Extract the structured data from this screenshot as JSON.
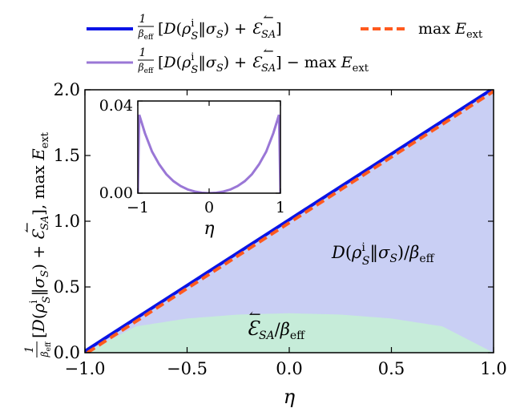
{
  "chart_data": {
    "type": "area",
    "xlabel": "η",
    "ylabel": "(1/β_eff)[D(ρ_S^i‖σ_S) + ↼E_SA], max E_ext",
    "xlim": [
      -1.0,
      1.0
    ],
    "ylim": [
      0.0,
      2.0
    ],
    "x_ticks": [
      "−1.0",
      "−0.5",
      "0.0",
      "0.5",
      "1.0"
    ],
    "y_ticks": [
      "0.0",
      "0.5",
      "1.0",
      "1.5",
      "2.0"
    ],
    "legend_placement": "top",
    "colors": {
      "total_line": "#0a14e6",
      "max_eext_line": "#ff5a1e",
      "difference_line": "#9a77d6",
      "relative_entropy_fill": "#c9cff4",
      "ergotropy_fill": "#c6ecd9"
    },
    "series": [
      {
        "name": "(1/β_eff)[D(ρ_S^i‖σ_S) + ↼E_SA]",
        "style": "solid",
        "color_key": "total_line",
        "x": [
          -1.0,
          -0.5,
          0.0,
          0.5,
          1.0
        ],
        "values": [
          0.0,
          0.5,
          1.0,
          1.5,
          2.0
        ]
      },
      {
        "name": "max E_ext",
        "style": "dashed",
        "color_key": "max_eext_line",
        "x": [
          -1.0,
          -0.5,
          0.0,
          0.5,
          1.0
        ],
        "values": [
          0.0,
          0.5,
          1.0,
          1.5,
          2.0
        ]
      },
      {
        "name": "(1/β_eff)[D(ρ_S^i‖σ_S) + ↼E_SA] − max E_ext",
        "style": "solid",
        "color_key": "difference_line",
        "plotted_in": "inset"
      }
    ],
    "areas": [
      {
        "label": "D(ρ_S^i‖σ_S)/β_eff",
        "color_key": "relative_entropy_fill",
        "x": [
          -1.0,
          -0.5,
          0.0,
          0.5,
          1.0
        ],
        "upper": [
          0.0,
          0.5,
          1.0,
          1.5,
          2.0
        ]
      },
      {
        "label": "↼E_SA/β_eff",
        "color_key": "ergotropy_fill",
        "x": [
          -1.0,
          -0.75,
          -0.5,
          -0.25,
          0.0,
          0.25,
          0.5,
          0.75,
          1.0
        ],
        "upper": [
          0.0,
          0.2,
          0.26,
          0.29,
          0.3,
          0.29,
          0.26,
          0.2,
          0.0
        ]
      }
    ],
    "inset": {
      "type": "line",
      "xlabel": "η",
      "xlim": [
        -1.0,
        1.0
      ],
      "ylim": [
        0.0,
        0.04
      ],
      "x_ticks": [
        "−1",
        "0",
        "1"
      ],
      "y_ticks": [
        "0.00",
        "0.04"
      ],
      "x": [
        -1.0,
        -0.98,
        -0.95,
        -0.9,
        -0.8,
        -0.7,
        -0.6,
        -0.5,
        -0.4,
        -0.3,
        -0.2,
        -0.1,
        0.0,
        0.1,
        0.2,
        0.3,
        0.4,
        0.5,
        0.6,
        0.7,
        0.8,
        0.9,
        0.95,
        0.98,
        1.0
      ],
      "values": [
        0.0,
        0.034,
        0.031,
        0.026,
        0.018,
        0.0125,
        0.0082,
        0.0052,
        0.0031,
        0.0016,
        0.0007,
        0.00017,
        0.0,
        0.00017,
        0.0007,
        0.0016,
        0.0031,
        0.0052,
        0.0082,
        0.0125,
        0.018,
        0.026,
        0.031,
        0.034,
        0.0
      ]
    }
  }
}
